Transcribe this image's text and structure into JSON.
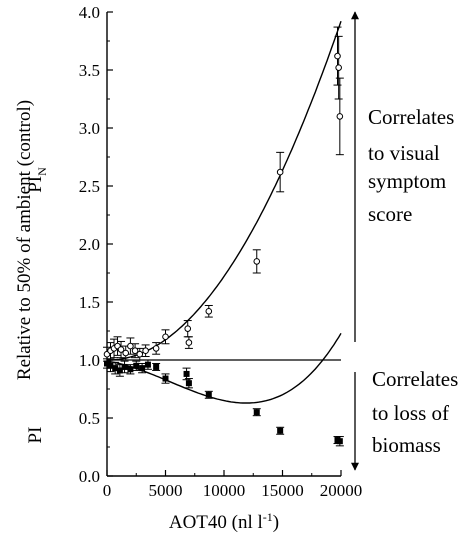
{
  "chart_data": {
    "type": "scatter",
    "xlabel_main": "AOT40 (nl l",
    "xlabel_sup": "-1",
    "xlabel_close": ")",
    "ylabel": "Relative to 50% of ambient (control)",
    "xlim": [
      0,
      20000
    ],
    "ylim": [
      0,
      4.0
    ],
    "xticks": [
      0,
      5000,
      10000,
      15000,
      20000
    ],
    "yticks": [
      "0.0",
      "0.5",
      "1.0",
      "1.5",
      "2.0",
      "2.5",
      "3.0",
      "3.5",
      "4.0"
    ],
    "reference_line_y": 1.0,
    "series": [
      {
        "name_main": "PI",
        "name_sub": "N",
        "marker": "open-circle",
        "points": [
          {
            "x": 0,
            "y": 1.05,
            "err": 0.06
          },
          {
            "x": 300,
            "y": 1.08,
            "err": 0.07
          },
          {
            "x": 600,
            "y": 1.1,
            "err": 0.08
          },
          {
            "x": 900,
            "y": 1.12,
            "err": 0.08
          },
          {
            "x": 1200,
            "y": 1.09,
            "err": 0.07
          },
          {
            "x": 1600,
            "y": 1.06,
            "err": 0.06
          },
          {
            "x": 2000,
            "y": 1.12,
            "err": 0.07
          },
          {
            "x": 2400,
            "y": 1.08,
            "err": 0.06
          },
          {
            "x": 2800,
            "y": 1.05,
            "err": 0.05
          },
          {
            "x": 3300,
            "y": 1.08,
            "err": 0.05
          },
          {
            "x": 4200,
            "y": 1.1,
            "err": 0.05
          },
          {
            "x": 5000,
            "y": 1.2,
            "err": 0.06
          },
          {
            "x": 6900,
            "y": 1.27,
            "err": 0.07
          },
          {
            "x": 7000,
            "y": 1.15,
            "err": 0.05
          },
          {
            "x": 8700,
            "y": 1.42,
            "err": 0.05
          },
          {
            "x": 12800,
            "y": 1.85,
            "err": 0.1
          },
          {
            "x": 14800,
            "y": 2.62,
            "err": 0.17
          },
          {
            "x": 19700,
            "y": 3.62,
            "err": 0.25
          },
          {
            "x": 19800,
            "y": 3.52,
            "err": 0.27
          },
          {
            "x": 19900,
            "y": 3.1,
            "err": 0.33
          }
        ],
        "fit": {
          "type": "quadratic",
          "coefficients": [
            1.0,
            -1.95e-06,
            7.4e-09
          ],
          "x_range": [
            0,
            20000
          ]
        }
      },
      {
        "name_main": "PI",
        "name_sub": "",
        "marker": "filled-square",
        "points": [
          {
            "x": 0,
            "y": 0.97,
            "err": 0.04
          },
          {
            "x": 300,
            "y": 0.95,
            "err": 0.05
          },
          {
            "x": 700,
            "y": 0.93,
            "err": 0.05
          },
          {
            "x": 1100,
            "y": 0.91,
            "err": 0.05
          },
          {
            "x": 1500,
            "y": 0.94,
            "err": 0.05
          },
          {
            "x": 2000,
            "y": 0.92,
            "err": 0.04
          },
          {
            "x": 2500,
            "y": 0.95,
            "err": 0.04
          },
          {
            "x": 3000,
            "y": 0.93,
            "err": 0.04
          },
          {
            "x": 3500,
            "y": 0.96,
            "err": 0.04
          },
          {
            "x": 4200,
            "y": 0.94,
            "err": 0.03
          },
          {
            "x": 5000,
            "y": 0.84,
            "err": 0.04
          },
          {
            "x": 6800,
            "y": 0.88,
            "err": 0.05
          },
          {
            "x": 7000,
            "y": 0.8,
            "err": 0.04
          },
          {
            "x": 8700,
            "y": 0.7,
            "err": 0.03
          },
          {
            "x": 12800,
            "y": 0.55,
            "err": 0.03
          },
          {
            "x": 14800,
            "y": 0.39,
            "err": 0.03
          },
          {
            "x": 19700,
            "y": 0.31,
            "err": 0.03
          },
          {
            "x": 19900,
            "y": 0.3,
            "err": 0.04
          }
        ],
        "fit": {
          "type": "cubic",
          "coefficients": [
            0.99,
            -1.4e-05,
            -5.3e-09,
            3.3e-13
          ],
          "x_range": [
            0,
            20000
          ]
        }
      }
    ],
    "annotations": {
      "top": [
        "Correlates",
        "to visual",
        "symptom",
        "score"
      ],
      "bottom": [
        "Correlates",
        "to loss of",
        "biomass"
      ]
    }
  }
}
